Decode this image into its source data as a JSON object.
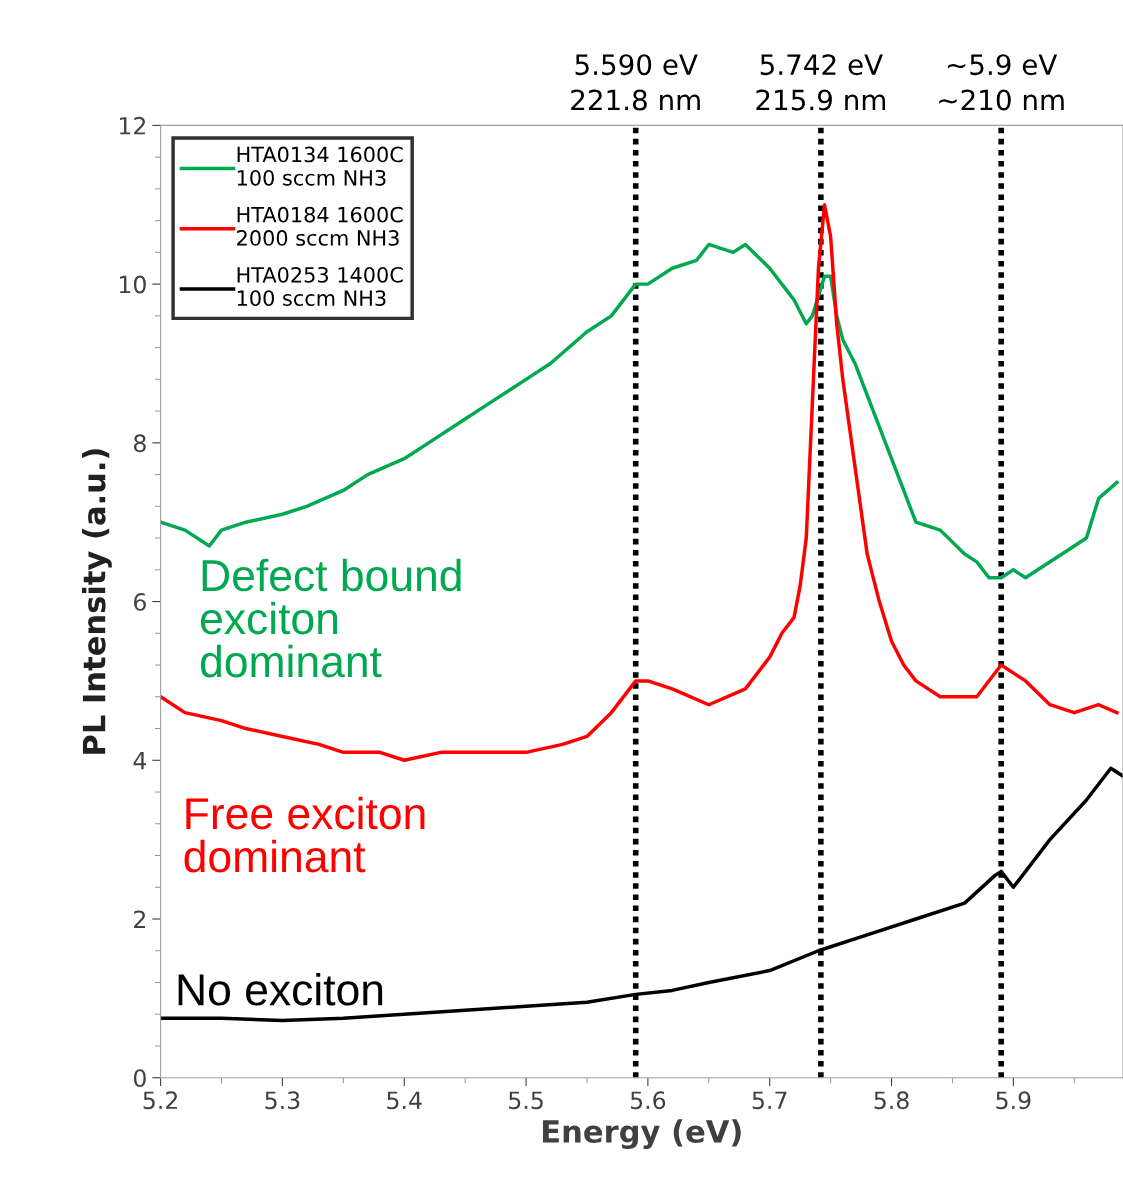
{
  "chart_data": {
    "type": "line",
    "xlabel": "Energy (eV)",
    "ylabel": "PL Intensity (a.u.)",
    "xlim": [
      5.2,
      5.99
    ],
    "xticks": [
      5.2,
      5.3,
      5.4,
      5.5,
      5.6,
      5.7,
      5.8,
      5.9
    ],
    "ylim": [
      0,
      12
    ],
    "yticks": [
      0,
      2,
      4,
      6,
      8,
      10,
      12
    ],
    "grid": false,
    "legend": "top left",
    "marker": "none",
    "line_style": "solid",
    "series": [
      {
        "name": "HTA0134 1600C\n100 sccm NH3",
        "color": "#00a84f",
        "x": [
          5.2,
          5.22,
          5.24,
          5.25,
          5.27,
          5.3,
          5.32,
          5.35,
          5.37,
          5.4,
          5.42,
          5.45,
          5.47,
          5.5,
          5.52,
          5.55,
          5.57,
          5.59,
          5.6,
          5.62,
          5.64,
          5.65,
          5.67,
          5.68,
          5.7,
          5.71,
          5.72,
          5.73,
          5.735,
          5.745,
          5.75,
          5.755,
          5.76,
          5.77,
          5.78,
          5.79,
          5.8,
          5.81,
          5.82,
          5.84,
          5.86,
          5.87,
          5.88,
          5.89,
          5.9,
          5.91,
          5.92,
          5.94,
          5.95,
          5.96,
          5.97,
          5.985
        ],
        "values": [
          7.0,
          6.9,
          6.7,
          6.9,
          7.0,
          7.1,
          7.2,
          7.4,
          7.6,
          7.8,
          8.0,
          8.3,
          8.5,
          8.8,
          9.0,
          9.4,
          9.6,
          10.0,
          10.0,
          10.2,
          10.3,
          10.5,
          10.4,
          10.5,
          10.2,
          10.0,
          9.8,
          9.5,
          9.6,
          10.1,
          10.1,
          9.6,
          9.3,
          9.0,
          8.6,
          8.2,
          7.8,
          7.4,
          7.0,
          6.9,
          6.6,
          6.5,
          6.3,
          6.3,
          6.4,
          6.3,
          6.4,
          6.6,
          6.7,
          6.8,
          7.3,
          7.5
        ]
      },
      {
        "name": "HTA0184 1600C\n2000 sccm NH3",
        "color": "#ff0000",
        "x": [
          5.2,
          5.22,
          5.25,
          5.27,
          5.3,
          5.33,
          5.35,
          5.38,
          5.4,
          5.43,
          5.45,
          5.48,
          5.5,
          5.53,
          5.55,
          5.57,
          5.59,
          5.6,
          5.62,
          5.65,
          5.68,
          5.7,
          5.71,
          5.72,
          5.725,
          5.73,
          5.735,
          5.74,
          5.745,
          5.75,
          5.755,
          5.76,
          5.77,
          5.78,
          5.79,
          5.8,
          5.81,
          5.82,
          5.84,
          5.86,
          5.87,
          5.89,
          5.91,
          5.93,
          5.95,
          5.97,
          5.985
        ],
        "values": [
          4.8,
          4.6,
          4.5,
          4.4,
          4.3,
          4.2,
          4.1,
          4.1,
          4.0,
          4.1,
          4.1,
          4.1,
          4.1,
          4.2,
          4.3,
          4.6,
          5.0,
          5.0,
          4.9,
          4.7,
          4.9,
          5.3,
          5.6,
          5.8,
          6.2,
          6.8,
          8.5,
          10.2,
          11.0,
          10.6,
          9.5,
          8.8,
          7.7,
          6.6,
          6.0,
          5.5,
          5.2,
          5.0,
          4.8,
          4.8,
          4.8,
          5.2,
          5.0,
          4.7,
          4.6,
          4.7,
          4.6
        ]
      },
      {
        "name": "HTA0253 1400C\n100 sccm NH3",
        "color": "#000000",
        "x": [
          5.2,
          5.25,
          5.3,
          5.35,
          5.4,
          5.45,
          5.5,
          5.55,
          5.59,
          5.62,
          5.65,
          5.7,
          5.74,
          5.78,
          5.82,
          5.86,
          5.885,
          5.89,
          5.9,
          5.93,
          5.96,
          5.98,
          5.99
        ],
        "values": [
          0.75,
          0.75,
          0.72,
          0.75,
          0.8,
          0.85,
          0.9,
          0.95,
          1.05,
          1.1,
          1.2,
          1.35,
          1.6,
          1.8,
          2.0,
          2.2,
          2.55,
          2.6,
          2.4,
          3.0,
          3.5,
          3.9,
          3.8
        ]
      }
    ],
    "ref_lines": [
      {
        "axis": "x",
        "value": 5.59,
        "label": "5.590 eV\n221.8 nm",
        "color": "#000000",
        "line_style": "dotted"
      },
      {
        "axis": "x",
        "value": 5.742,
        "label": "5.742 eV\n215.9 nm",
        "color": "#000000",
        "line_style": "dotted"
      },
      {
        "axis": "x",
        "value": 5.89,
        "label": "~5.9 eV\n~210 nm",
        "color": "#000000",
        "line_style": "dotted"
      }
    ],
    "annotations": [
      "Defect bound\nexciton\ndominant",
      "Free exciton\ndominant",
      "No exciton"
    ]
  }
}
